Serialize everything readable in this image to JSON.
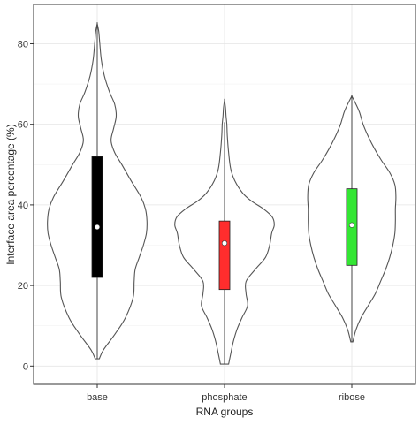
{
  "chart_data": {
    "type": "violin",
    "xlabel": "RNA groups",
    "ylabel": "Interface area percentage (%)",
    "categories": [
      "base",
      "phosphate",
      "ribose"
    ],
    "ylim": [
      -3,
      88
    ],
    "yticks": [
      0,
      20,
      40,
      60,
      80
    ],
    "grid": true,
    "background": "#ffffff",
    "violins": [
      {
        "name": "base",
        "min": 1.8,
        "max": 85,
        "q1": 22,
        "median": 34.5,
        "q3": 52,
        "whisker_low": 1.8,
        "whisker_high": 85,
        "box_color": "#000000",
        "density": [
          [
            1.8,
            0.04
          ],
          [
            4,
            0.12
          ],
          [
            8,
            0.35
          ],
          [
            12,
            0.55
          ],
          [
            17,
            0.7
          ],
          [
            21,
            0.72
          ],
          [
            24,
            0.74
          ],
          [
            27,
            0.82
          ],
          [
            30,
            0.9
          ],
          [
            33,
            0.96
          ],
          [
            36,
            0.97
          ],
          [
            39,
            0.94
          ],
          [
            42,
            0.85
          ],
          [
            46,
            0.66
          ],
          [
            50,
            0.48
          ],
          [
            53,
            0.34
          ],
          [
            56,
            0.27
          ],
          [
            59,
            0.32
          ],
          [
            62,
            0.37
          ],
          [
            65,
            0.34
          ],
          [
            68,
            0.24
          ],
          [
            72,
            0.14
          ],
          [
            76,
            0.08
          ],
          [
            80,
            0.05
          ],
          [
            83,
            0.03
          ],
          [
            85,
            0.0
          ]
        ]
      },
      {
        "name": "phosphate",
        "min": 0.5,
        "max": 66,
        "q1": 19,
        "median": 30.5,
        "q3": 36,
        "whisker_low": 0.5,
        "whisker_high": 60.5,
        "box_color": "#ff2d2d",
        "density": [
          [
            0.5,
            0.08
          ],
          [
            3,
            0.12
          ],
          [
            6,
            0.17
          ],
          [
            9,
            0.24
          ],
          [
            12,
            0.34
          ],
          [
            15,
            0.45
          ],
          [
            18,
            0.42
          ],
          [
            21,
            0.42
          ],
          [
            24,
            0.6
          ],
          [
            27,
            0.8
          ],
          [
            30,
            0.88
          ],
          [
            33,
            0.92
          ],
          [
            35,
            0.97
          ],
          [
            37,
            0.93
          ],
          [
            39,
            0.76
          ],
          [
            41,
            0.52
          ],
          [
            43,
            0.35
          ],
          [
            46,
            0.2
          ],
          [
            49,
            0.12
          ],
          [
            53,
            0.08
          ],
          [
            57,
            0.055
          ],
          [
            60,
            0.045
          ],
          [
            62,
            0.03
          ],
          [
            64,
            0.02
          ],
          [
            66,
            0.0
          ]
        ]
      },
      {
        "name": "ribose",
        "min": 6,
        "max": 67,
        "q1": 25,
        "median": 35,
        "q3": 44,
        "whisker_low": 6,
        "whisker_high": 67,
        "box_color": "#33e633",
        "density": [
          [
            6,
            0.02
          ],
          [
            9,
            0.08
          ],
          [
            12,
            0.18
          ],
          [
            15,
            0.32
          ],
          [
            18,
            0.46
          ],
          [
            21,
            0.56
          ],
          [
            24,
            0.66
          ],
          [
            27,
            0.74
          ],
          [
            30,
            0.8
          ],
          [
            33,
            0.84
          ],
          [
            36,
            0.85
          ],
          [
            39,
            0.85
          ],
          [
            42,
            0.86
          ],
          [
            45,
            0.84
          ],
          [
            48,
            0.74
          ],
          [
            51,
            0.58
          ],
          [
            54,
            0.44
          ],
          [
            57,
            0.32
          ],
          [
            60,
            0.22
          ],
          [
            63,
            0.15
          ],
          [
            65,
            0.08
          ],
          [
            67,
            0.0
          ]
        ]
      }
    ]
  }
}
